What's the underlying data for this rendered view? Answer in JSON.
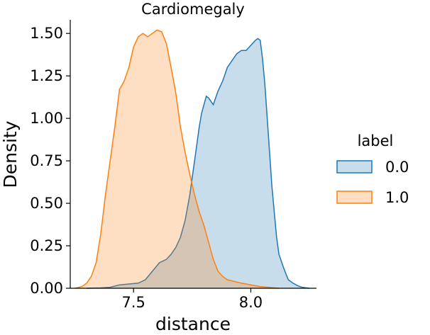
{
  "chart_data": {
    "type": "area",
    "title": "Cardiomegaly",
    "xlabel": "distance",
    "ylabel": "Density",
    "xlim": [
      7.23,
      8.28
    ],
    "ylim": [
      0,
      1.58
    ],
    "xticks": [
      7.5,
      8.0
    ],
    "xtick_labels": [
      "7.5",
      "8.0"
    ],
    "yticks": [
      0.0,
      0.25,
      0.5,
      0.75,
      1.0,
      1.25,
      1.5
    ],
    "ytick_labels": [
      "0.00",
      "0.25",
      "0.50",
      "0.75",
      "1.00",
      "1.25",
      "1.50"
    ],
    "legend": {
      "title": "label",
      "position": "right"
    },
    "series": [
      {
        "name": "0.0",
        "color": "#1f77b4",
        "fill": "#1f77b4",
        "x": [
          7.3,
          7.36,
          7.4,
          7.44,
          7.48,
          7.52,
          7.55,
          7.58,
          7.61,
          7.64,
          7.66,
          7.68,
          7.7,
          7.72,
          7.74,
          7.76,
          7.78,
          7.79,
          7.8,
          7.81,
          7.82,
          7.83,
          7.84,
          7.85,
          7.86,
          7.88,
          7.9,
          7.92,
          7.94,
          7.96,
          7.98,
          8.0,
          8.02,
          8.03,
          8.04,
          8.05,
          8.06,
          8.07,
          8.08,
          8.09,
          8.1,
          8.11,
          8.12,
          8.14,
          8.16,
          8.18,
          8.2,
          8.22,
          8.25
        ],
        "y": [
          0.0,
          0.002,
          0.006,
          0.02,
          0.025,
          0.03,
          0.05,
          0.1,
          0.15,
          0.17,
          0.2,
          0.24,
          0.3,
          0.4,
          0.55,
          0.75,
          0.95,
          1.03,
          1.08,
          1.13,
          1.12,
          1.1,
          1.08,
          1.12,
          1.16,
          1.22,
          1.3,
          1.34,
          1.38,
          1.4,
          1.4,
          1.43,
          1.46,
          1.47,
          1.46,
          1.35,
          1.2,
          1.0,
          0.8,
          0.6,
          0.45,
          0.3,
          0.2,
          0.12,
          0.05,
          0.03,
          0.015,
          0.005,
          0.0
        ]
      },
      {
        "name": "1.0",
        "color": "#ff7f0e",
        "fill": "#ff7f0e",
        "x": [
          7.25,
          7.28,
          7.3,
          7.32,
          7.34,
          7.36,
          7.38,
          7.4,
          7.42,
          7.44,
          7.46,
          7.48,
          7.5,
          7.52,
          7.54,
          7.56,
          7.58,
          7.6,
          7.62,
          7.64,
          7.66,
          7.68,
          7.7,
          7.72,
          7.74,
          7.76,
          7.78,
          7.8,
          7.82,
          7.84,
          7.86,
          7.88,
          7.9,
          7.93,
          7.96,
          8.0,
          8.04,
          8.08,
          8.12
        ],
        "y": [
          0.0,
          0.01,
          0.03,
          0.07,
          0.15,
          0.32,
          0.55,
          0.75,
          0.95,
          1.17,
          1.22,
          1.3,
          1.42,
          1.48,
          1.5,
          1.48,
          1.5,
          1.52,
          1.51,
          1.44,
          1.3,
          1.15,
          0.95,
          0.8,
          0.67,
          0.55,
          0.45,
          0.37,
          0.27,
          0.17,
          0.1,
          0.07,
          0.05,
          0.04,
          0.03,
          0.02,
          0.01,
          0.005,
          0.0
        ]
      }
    ]
  }
}
